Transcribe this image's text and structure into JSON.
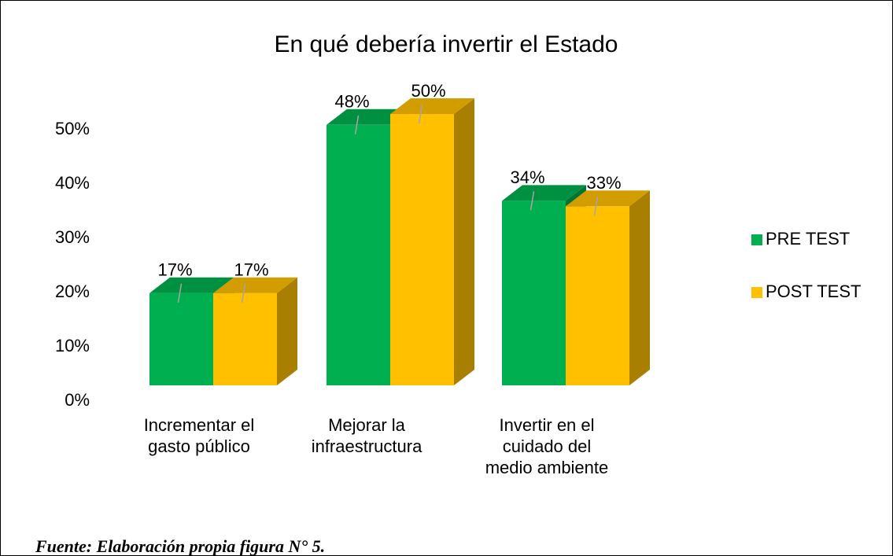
{
  "chart_data": {
    "type": "bar3d",
    "title": "En qué debería invertir el Estado",
    "categories": [
      "Incrementar el gasto público",
      "Mejorar la infraestructura",
      "Invertir en el cuidado del medio ambiente"
    ],
    "series": [
      {
        "name": "PRE TEST",
        "color": "#00b050",
        "values": [
          17,
          48,
          34
        ],
        "value_labels": [
          "17%",
          "48%",
          "34%"
        ]
      },
      {
        "name": "POST TEST",
        "color": "#ffc000",
        "values": [
          17,
          50,
          33
        ],
        "value_labels": [
          "17%",
          "50%",
          "33%"
        ]
      }
    ],
    "ylim": [
      0,
      50
    ],
    "yticks": [
      {
        "value": 0,
        "label": "0%"
      },
      {
        "value": 10,
        "label": "10%"
      },
      {
        "value": 20,
        "label": "20%"
      },
      {
        "value": 30,
        "label": "30%"
      },
      {
        "value": 40,
        "label": "40%"
      },
      {
        "value": 50,
        "label": "50%"
      }
    ],
    "grid": false,
    "legend": "right",
    "source": "Fuente: Elaboración propia figura N° 5."
  }
}
